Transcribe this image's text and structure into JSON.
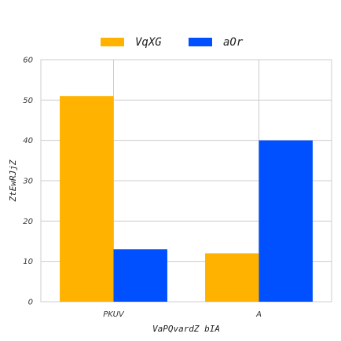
{
  "chart_data": {
    "type": "bar",
    "title": "",
    "xlabel": "VaPQvardZ bIA",
    "ylabel": "ZtEwRJjZ",
    "categories": [
      "PKUV",
      "A"
    ],
    "series": [
      {
        "name": "VqXG",
        "values": [
          51,
          12
        ],
        "color": "#FFB300"
      },
      {
        "name": "aOr",
        "values": [
          13,
          40
        ],
        "color": "#0050FF"
      }
    ],
    "ylim": [
      0,
      60
    ],
    "yticks": [
      0,
      10,
      20,
      30,
      40,
      50,
      60
    ],
    "grid": true,
    "legend_position": "top-center"
  }
}
